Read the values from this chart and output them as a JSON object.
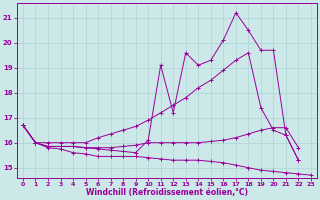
{
  "xlabel": "Windchill (Refroidissement éolien,°C)",
  "bg_color": "#cce8e8",
  "line_color": "#990099",
  "grid_color": "#aad4d4",
  "xlim": [
    -0.5,
    23.5
  ],
  "ylim": [
    14.6,
    21.6
  ],
  "yticks": [
    15,
    16,
    17,
    18,
    19,
    20,
    21
  ],
  "xticks": [
    0,
    1,
    2,
    3,
    4,
    5,
    6,
    7,
    8,
    9,
    10,
    11,
    12,
    13,
    14,
    15,
    16,
    17,
    18,
    19,
    20,
    21,
    22,
    23
  ],
  "line1_x": [
    0,
    1,
    2,
    3,
    4,
    5,
    6,
    7,
    8,
    9,
    10,
    11,
    12,
    13,
    14,
    15,
    16,
    17,
    18,
    19,
    20,
    21,
    22,
    23
  ],
  "line1_y": [
    16.7,
    16.0,
    15.8,
    15.75,
    15.6,
    15.55,
    15.45,
    15.45,
    15.45,
    15.45,
    15.4,
    15.35,
    15.3,
    15.3,
    15.3,
    15.25,
    15.2,
    15.1,
    15.0,
    14.9,
    14.85,
    14.8,
    14.75,
    14.7
  ],
  "line2_x": [
    0,
    1,
    2,
    3,
    4,
    5,
    6,
    7,
    8,
    9,
    10,
    11,
    12,
    13,
    14,
    15,
    16,
    17,
    18,
    19,
    20,
    21,
    22
  ],
  "line2_y": [
    16.7,
    16.0,
    15.85,
    15.85,
    15.85,
    15.8,
    15.8,
    15.8,
    15.85,
    15.9,
    16.0,
    16.0,
    16.0,
    16.0,
    16.0,
    16.05,
    16.1,
    16.2,
    16.35,
    16.5,
    16.6,
    16.6,
    15.8
  ],
  "line3_x": [
    0,
    1,
    2,
    3,
    4,
    5,
    6,
    7,
    8,
    9,
    10,
    11,
    12,
    13,
    14,
    15,
    16,
    17,
    18,
    19,
    20,
    21,
    22
  ],
  "line3_y": [
    16.7,
    16.0,
    16.0,
    16.0,
    16.0,
    16.0,
    16.2,
    16.35,
    16.5,
    16.65,
    16.9,
    17.2,
    17.5,
    17.8,
    18.2,
    18.5,
    18.9,
    19.3,
    19.6,
    17.4,
    16.5,
    16.3,
    15.3
  ],
  "line4_x": [
    0,
    1,
    2,
    3,
    4,
    5,
    6,
    7,
    8,
    9,
    10,
    11,
    12,
    13,
    14,
    15,
    16,
    17,
    18,
    19,
    20,
    21,
    22
  ],
  "line4_y": [
    16.7,
    16.0,
    15.85,
    15.85,
    15.85,
    15.8,
    15.75,
    15.7,
    15.65,
    15.6,
    16.1,
    19.1,
    17.2,
    19.6,
    19.1,
    19.3,
    20.1,
    21.2,
    20.5,
    19.7,
    19.7,
    16.3,
    15.3
  ]
}
